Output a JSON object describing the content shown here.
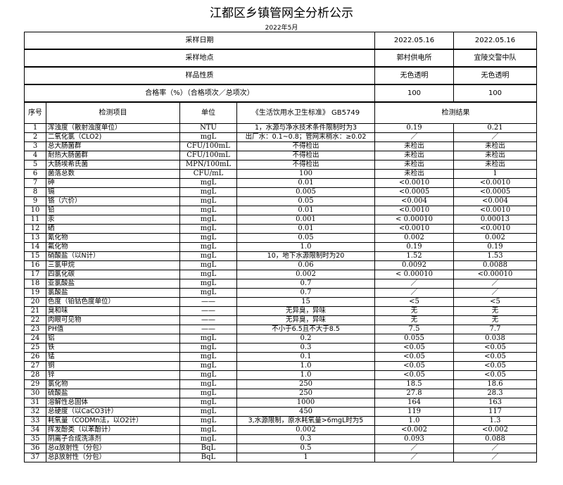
{
  "title": "江都区乡镇管网全分析公示",
  "subtitle": "2022年5月",
  "summary": [
    {
      "label": "采样日期",
      "v1": "2022.05.16",
      "v2": "2022.05.16"
    },
    {
      "label": "采样地点",
      "v1": "郭村供电所",
      "v2": "宜陵交警中队"
    },
    {
      "label": "样品性质",
      "v1": "无色透明",
      "v2": "无色透明"
    },
    {
      "label": "合格率（%）（合格项次／总项次）",
      "v1": "100",
      "v2": "100"
    }
  ],
  "header": {
    "no": "序号",
    "item": "检测项目",
    "unit": "单位",
    "standard": "《生活饮用水卫生标准》 GB5749",
    "result": "检测结果"
  },
  "rows": [
    [
      "1",
      "浑浊度（散射浊度单位）",
      "NTU",
      "1，水源与净水技术条件限制时为3",
      "0.19",
      "0.21"
    ],
    [
      "2",
      "二氧化氯（CLO2)",
      "mgL",
      "出厂水：0.1~0.8；管网末梢水：≥0.02",
      "／",
      "／"
    ],
    [
      "3",
      "总大肠菌群",
      "CFU/100mL",
      "不得检出",
      "未检出",
      "未检出"
    ],
    [
      "4",
      "耐热大肠菌群",
      "CFU/100mL",
      "不得检出",
      "未检出",
      "未检出"
    ],
    [
      "5",
      "大肠埃希氏菌",
      "MPN/100mL",
      "不得检出",
      "未检出",
      "未检出"
    ],
    [
      "6",
      "菌落总数",
      "CFU/mL",
      "100",
      "未检出",
      "1"
    ],
    [
      "7",
      "砷",
      "mgL",
      "0.01",
      "<0.0010",
      "<0.0010"
    ],
    [
      "8",
      "镉",
      "mgL",
      "0.005",
      "<0.0005",
      "<0.0005"
    ],
    [
      "9",
      "铬（六价）",
      "mgL",
      "0.05",
      "<0.004",
      "<0.004"
    ],
    [
      "10",
      "铅",
      "mgL",
      "0.01",
      "<0.0010",
      "<0.0010"
    ],
    [
      "11",
      "汞",
      "mgL",
      "0.001",
      "< 0.00010",
      "0.00013"
    ],
    [
      "12",
      "硒",
      "mgL",
      "0.01",
      "<0.0010",
      "<0.0010"
    ],
    [
      "13",
      "氰化物",
      "mgL",
      "0.05",
      "0.002",
      "0.002"
    ],
    [
      "14",
      "氟化物",
      "mgL",
      "1.0",
      "0.19",
      "0.19"
    ],
    [
      "15",
      "硝酸盐（以N计）",
      "mgL",
      "10，地下水源限制时为20",
      "1.52",
      "1.53"
    ],
    [
      "16",
      "三氯甲烷",
      "mgL",
      "0.06",
      "0.0092",
      "0.0088"
    ],
    [
      "17",
      "四氯化碳",
      "mgL",
      "0.002",
      "< 0.00010",
      "<0.00010"
    ],
    [
      "18",
      "亚氯酸盐",
      "mgL",
      "0.7",
      "／",
      "／"
    ],
    [
      "19",
      "氯酸盐",
      "mgL",
      "0.7",
      "／",
      "／"
    ],
    [
      "20",
      "色度（铂钴色度单位）",
      "——",
      "15",
      "<5",
      "<5"
    ],
    [
      "21",
      "臭和味",
      "——",
      "无异臭，异味",
      "无",
      "无"
    ],
    [
      "22",
      "肉眼可见物",
      "——",
      "无异臭，异味",
      "无",
      "无"
    ],
    [
      "23",
      "PH值",
      "——",
      "不小于6.5且不大于8.5",
      "7.5",
      "7.7"
    ],
    [
      "24",
      "铝",
      "mgL",
      "0.2",
      "0.055",
      "0.038"
    ],
    [
      "25",
      "铁",
      "mgL",
      "0.3",
      "<0.05",
      "<0.05"
    ],
    [
      "26",
      "锰",
      "mgL",
      "0.1",
      "<0.05",
      "<0.05"
    ],
    [
      "27",
      "铜",
      "mgL",
      "1.0",
      "<0.05",
      "<0.05"
    ],
    [
      "28",
      "锌",
      "mgL",
      "1.0",
      "<0.05",
      "<0.05"
    ],
    [
      "29",
      "氯化物",
      "mgL",
      "250",
      "18.5",
      "18.6"
    ],
    [
      "30",
      "硫酸盐",
      "mgL",
      "250",
      "27.8",
      "28.3"
    ],
    [
      "31",
      "溶解性总固体",
      "mgL",
      "1000",
      "164",
      "163"
    ],
    [
      "32",
      "总硬度（以CaCO3计）",
      "mgL",
      "450",
      "119",
      "117"
    ],
    [
      "33",
      "耗氧量（CODMn法，以O2计）",
      "mgL",
      "3,水源限制，原水耗氧量>6mgL时为5",
      "1.0",
      "1.3"
    ],
    [
      "34",
      "挥发酚类（以苯酚计）",
      "mgL",
      "0.002",
      "<0.002",
      "<0.002"
    ],
    [
      "35",
      "阴离子合成洗涤剂",
      "mgL",
      "0.3",
      "0.093",
      "0.088"
    ],
    [
      "36",
      "总α放射性（分包）",
      "BqL",
      "0.5",
      "／",
      "／"
    ],
    [
      "37",
      "总β放射性（分包）",
      "BqL",
      "1",
      "／",
      "／"
    ]
  ]
}
